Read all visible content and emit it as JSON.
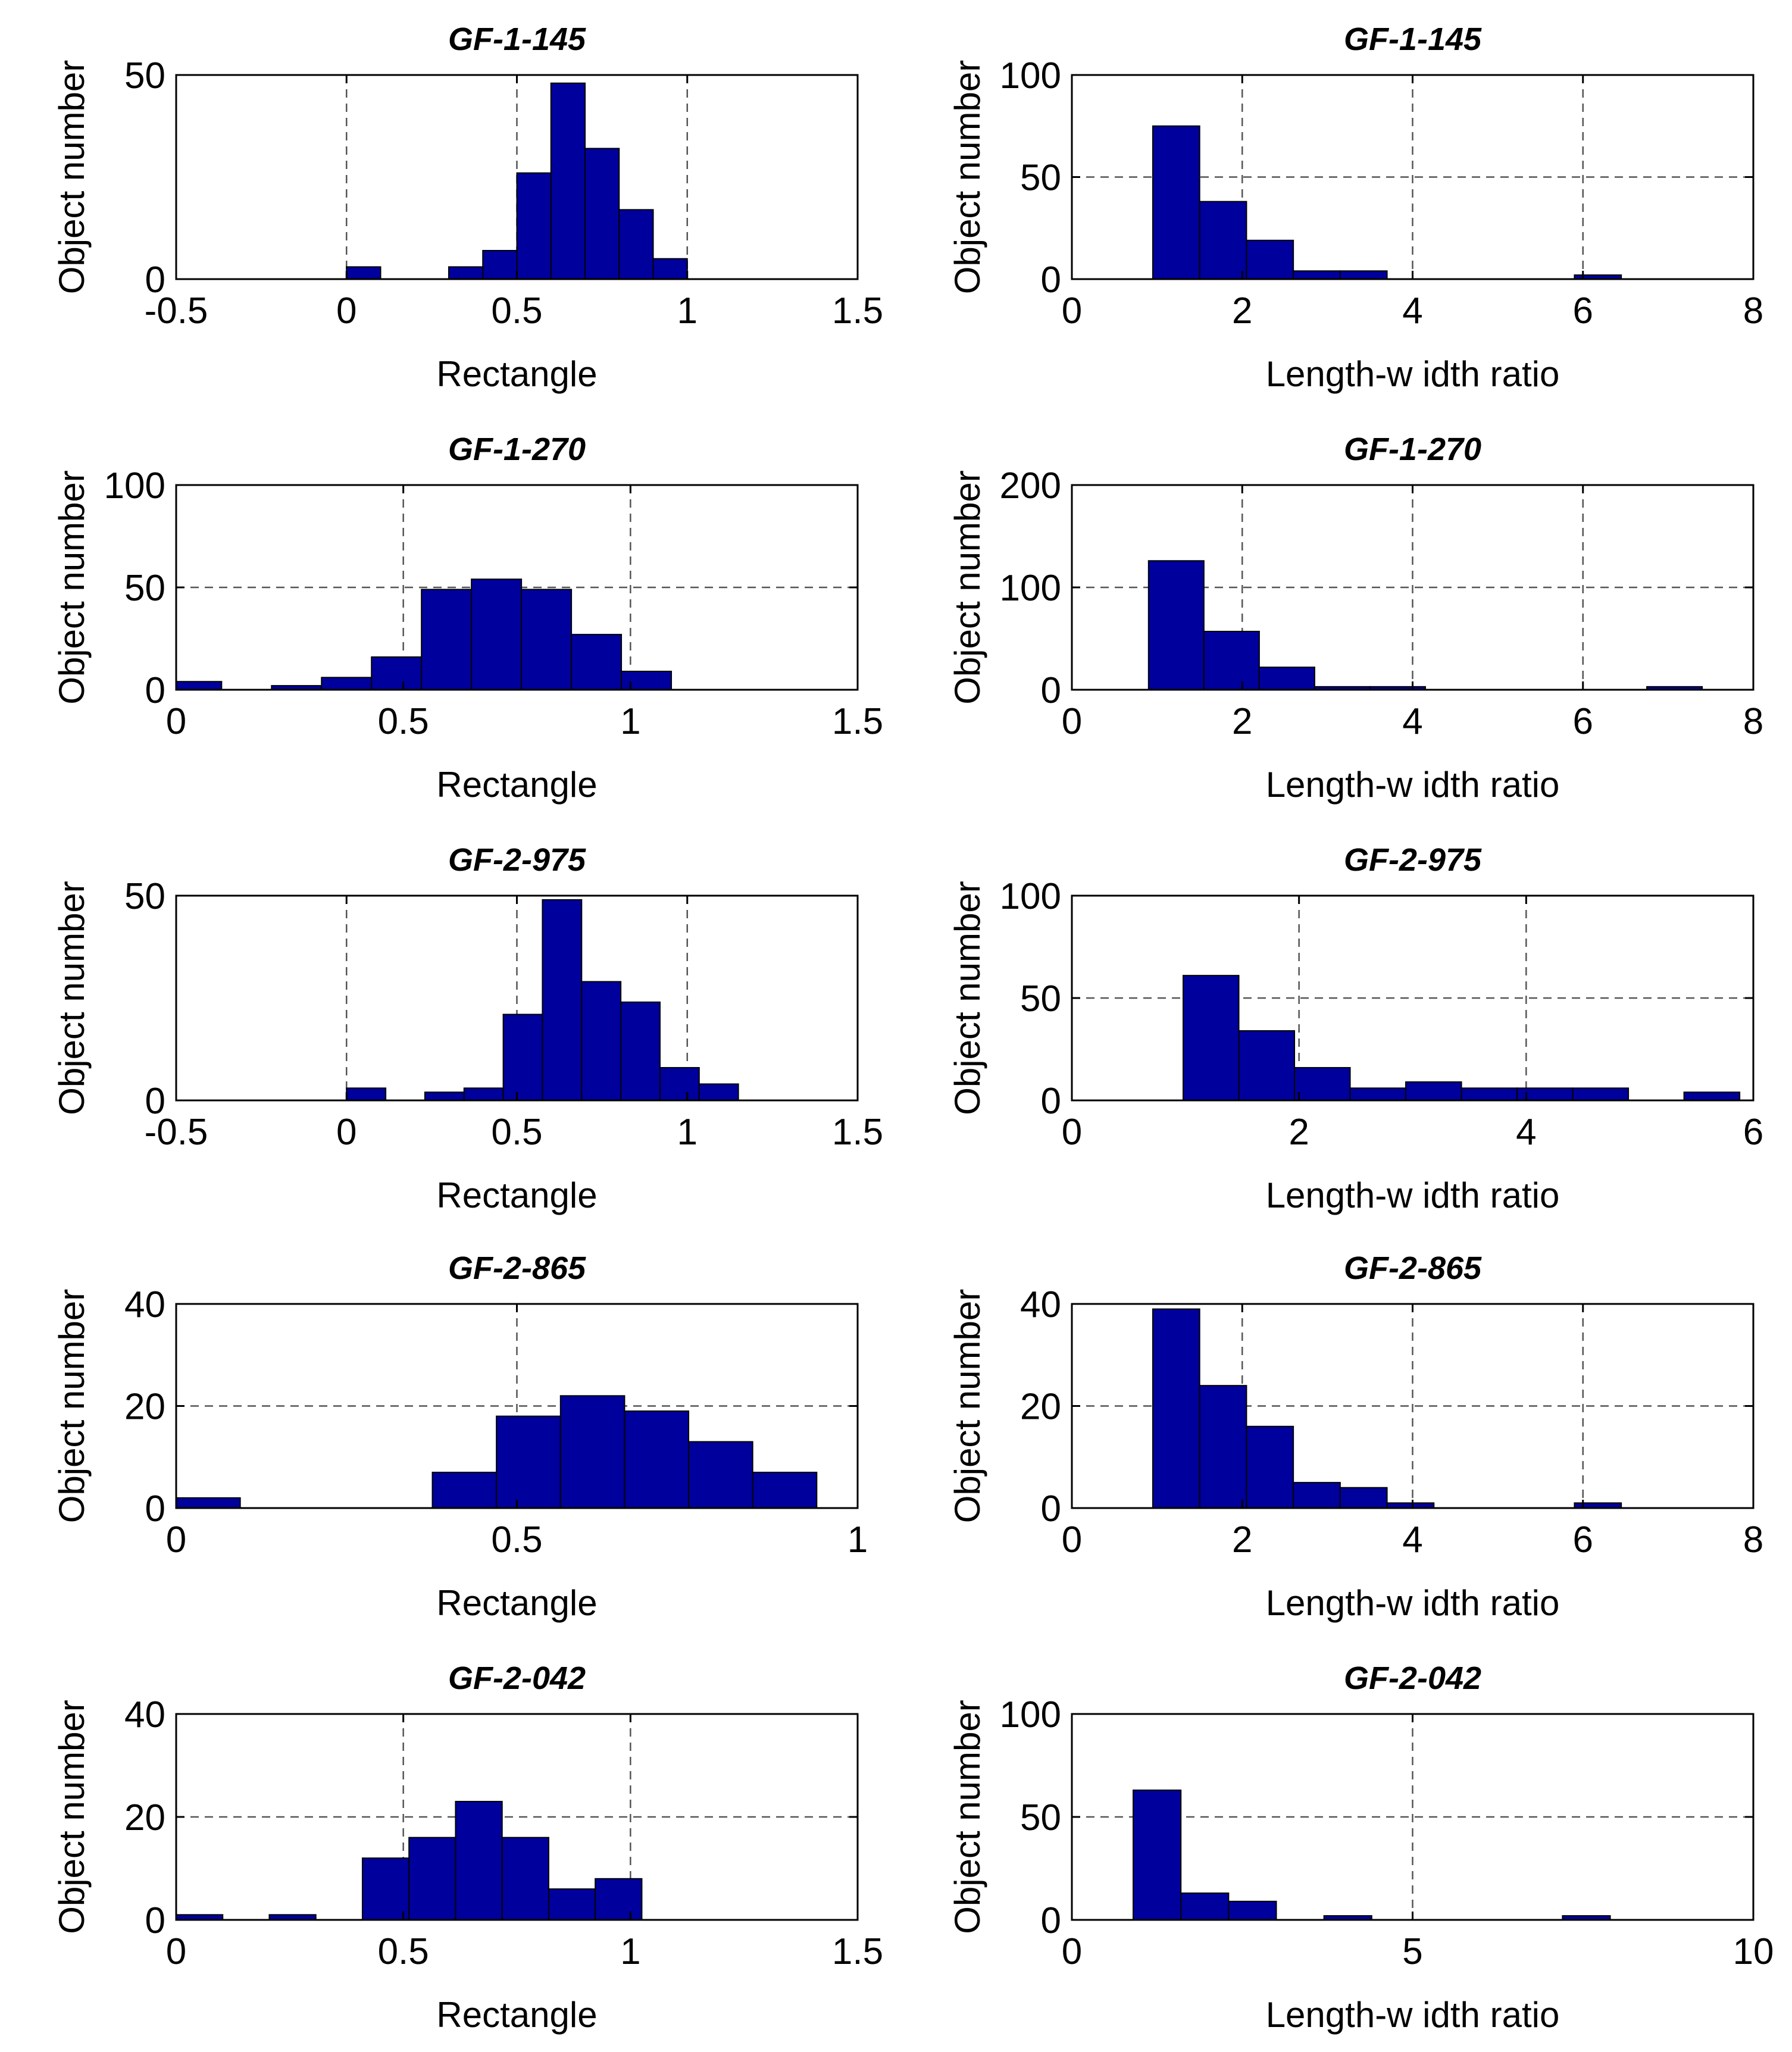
{
  "figure": {
    "background": "#ffffff",
    "bar_color": "#00009c",
    "bar_edge": "#000000",
    "grid_color": "#555555"
  },
  "chart_data": [
    {
      "type": "bar",
      "title": "GF-1-145",
      "xlabel": "Rectangle",
      "ylabel": "Object number",
      "xlim": [
        -0.5,
        1.5
      ],
      "ylim": [
        0,
        50
      ],
      "xticks": [
        "-0.5",
        "0",
        "0.5",
        "1",
        "1.5"
      ],
      "xtick_values": [
        -0.5,
        0,
        0.5,
        1,
        1.5
      ],
      "yticks": [
        "0",
        "50"
      ],
      "ytick_values": [
        0,
        50
      ],
      "bin_edges": [
        0.0,
        0.1,
        0.2,
        0.3,
        0.4,
        0.5,
        0.6,
        0.7,
        0.8,
        0.9,
        1.0
      ],
      "values": [
        3,
        0,
        0,
        3,
        7,
        26,
        48,
        32,
        17,
        5
      ]
    },
    {
      "type": "bar",
      "title": "GF-1-145",
      "xlabel": "Length-w idth ratio",
      "ylabel": "Object number",
      "xlim": [
        0,
        8
      ],
      "ylim": [
        0,
        100
      ],
      "xticks": [
        "0",
        "2",
        "4",
        "6",
        "8"
      ],
      "xtick_values": [
        0,
        2,
        4,
        6,
        8
      ],
      "yticks": [
        "0",
        "50",
        "100"
      ],
      "ytick_values": [
        0,
        50,
        100
      ],
      "bin_edges": [
        0.95,
        1.5,
        2.05,
        2.6,
        3.15,
        3.7,
        4.25,
        4.8,
        5.35,
        5.9,
        6.45
      ],
      "values": [
        75,
        38,
        19,
        4,
        4,
        0,
        0,
        0,
        0,
        2
      ]
    },
    {
      "type": "bar",
      "title": "GF-1-270",
      "xlabel": "Rectangle",
      "ylabel": "Object number",
      "xlim": [
        0,
        1.5
      ],
      "ylim": [
        0,
        100
      ],
      "xticks": [
        "0",
        "0.5",
        "1",
        "1.5"
      ],
      "xtick_values": [
        0,
        0.5,
        1,
        1.5
      ],
      "yticks": [
        "0",
        "50",
        "100"
      ],
      "ytick_values": [
        0,
        50,
        100
      ],
      "bin_edges": [
        0.0,
        0.1,
        0.21,
        0.32,
        0.43,
        0.54,
        0.65,
        0.76,
        0.87,
        0.98,
        1.09
      ],
      "values": [
        4,
        0,
        2,
        6,
        16,
        49,
        54,
        49,
        27,
        9
      ]
    },
    {
      "type": "bar",
      "title": "GF-1-270",
      "xlabel": "Length-w idth ratio",
      "ylabel": "Object number",
      "xlim": [
        0,
        8
      ],
      "ylim": [
        0,
        200
      ],
      "xticks": [
        "0",
        "2",
        "4",
        "6",
        "8"
      ],
      "xtick_values": [
        0,
        2,
        4,
        6,
        8
      ],
      "yticks": [
        "0",
        "100",
        "200"
      ],
      "ytick_values": [
        0,
        100,
        200
      ],
      "bin_edges": [
        0.9,
        1.55,
        2.2,
        2.85,
        3.5,
        4.15,
        4.8,
        5.45,
        6.1,
        6.75,
        7.4
      ],
      "values": [
        126,
        57,
        22,
        3,
        3,
        0,
        0,
        0,
        0,
        3
      ]
    },
    {
      "type": "bar",
      "title": "GF-2-975",
      "xlabel": "Rectangle",
      "ylabel": "Object number",
      "xlim": [
        -0.5,
        1.5
      ],
      "ylim": [
        0,
        50
      ],
      "xticks": [
        "-0.5",
        "0",
        "0.5",
        "1",
        "1.5"
      ],
      "xtick_values": [
        -0.5,
        0,
        0.5,
        1,
        1.5
      ],
      "yticks": [
        "0",
        "50"
      ],
      "ytick_values": [
        0,
        50
      ],
      "bin_edges": [
        0.0,
        0.115,
        0.23,
        0.345,
        0.46,
        0.575,
        0.69,
        0.805,
        0.92,
        1.035,
        1.15
      ],
      "values": [
        3,
        0,
        2,
        3,
        21,
        49,
        29,
        24,
        8,
        4
      ]
    },
    {
      "type": "bar",
      "title": "GF-2-975",
      "xlabel": "Length-w idth ratio",
      "ylabel": "Object number",
      "xlim": [
        0,
        6
      ],
      "ylim": [
        0,
        100
      ],
      "xticks": [
        "0",
        "2",
        "4",
        "6"
      ],
      "xtick_values": [
        0,
        2,
        4,
        6
      ],
      "yticks": [
        "0",
        "50",
        "100"
      ],
      "ytick_values": [
        0,
        50,
        100
      ],
      "bin_edges": [
        0.98,
        1.47,
        1.96,
        2.45,
        2.94,
        3.43,
        3.92,
        4.41,
        4.9,
        5.39,
        5.88
      ],
      "values": [
        61,
        34,
        16,
        6,
        9,
        6,
        6,
        6,
        0,
        4
      ]
    },
    {
      "type": "bar",
      "title": "GF-2-865",
      "xlabel": "Rectangle",
      "ylabel": "Object number",
      "xlim": [
        0,
        1
      ],
      "ylim": [
        0,
        40
      ],
      "xticks": [
        "0",
        "0.5",
        "1"
      ],
      "xtick_values": [
        0,
        0.5,
        1
      ],
      "yticks": [
        "0",
        "20",
        "40"
      ],
      "ytick_values": [
        0,
        20,
        40
      ],
      "bin_edges": [
        0.0,
        0.094,
        0.188,
        0.282,
        0.376,
        0.47,
        0.564,
        0.658,
        0.752,
        0.846,
        0.94
      ],
      "values": [
        2,
        0,
        0,
        0,
        7,
        18,
        22,
        19,
        13,
        7
      ]
    },
    {
      "type": "bar",
      "title": "GF-2-865",
      "xlabel": "Length-w idth ratio",
      "ylabel": "Object number",
      "xlim": [
        0,
        8
      ],
      "ylim": [
        0,
        40
      ],
      "xticks": [
        "0",
        "2",
        "4",
        "6",
        "8"
      ],
      "xtick_values": [
        0,
        2,
        4,
        6,
        8
      ],
      "yticks": [
        "0",
        "20",
        "40"
      ],
      "ytick_values": [
        0,
        20,
        40
      ],
      "bin_edges": [
        0.95,
        1.5,
        2.05,
        2.6,
        3.15,
        3.7,
        4.25,
        4.8,
        5.35,
        5.9,
        6.45
      ],
      "values": [
        39,
        24,
        16,
        5,
        4,
        1,
        0,
        0,
        0,
        1
      ]
    },
    {
      "type": "bar",
      "title": "GF-2-042",
      "xlabel": "Rectangle",
      "ylabel": "Object number",
      "xlim": [
        0,
        1.5
      ],
      "ylim": [
        0,
        40
      ],
      "xticks": [
        "0",
        "0.5",
        "1",
        "1.5"
      ],
      "xtick_values": [
        0,
        0.5,
        1,
        1.5
      ],
      "yticks": [
        "0",
        "20",
        "40"
      ],
      "ytick_values": [
        0,
        20,
        40
      ],
      "bin_edges": [
        0.0,
        0.1025,
        0.205,
        0.3075,
        0.41,
        0.5125,
        0.615,
        0.7175,
        0.82,
        0.9225,
        1.025
      ],
      "values": [
        1,
        0,
        1,
        0,
        12,
        16,
        23,
        16,
        6,
        8
      ]
    },
    {
      "type": "bar",
      "title": "GF-2-042",
      "xlabel": "Length-w idth ratio",
      "ylabel": "Object number",
      "xlim": [
        0,
        10
      ],
      "ylim": [
        0,
        100
      ],
      "xticks": [
        "0",
        "5",
        "10"
      ],
      "xtick_values": [
        0,
        5,
        10
      ],
      "yticks": [
        "0",
        "50",
        "100"
      ],
      "ytick_values": [
        0,
        50,
        100
      ],
      "bin_edges": [
        0.9,
        1.6,
        2.3,
        3.0,
        3.7,
        4.4,
        5.1,
        5.8,
        6.5,
        7.2,
        7.9
      ],
      "values": [
        63,
        13,
        9,
        0,
        2,
        0,
        0,
        0,
        0,
        2
      ]
    }
  ]
}
